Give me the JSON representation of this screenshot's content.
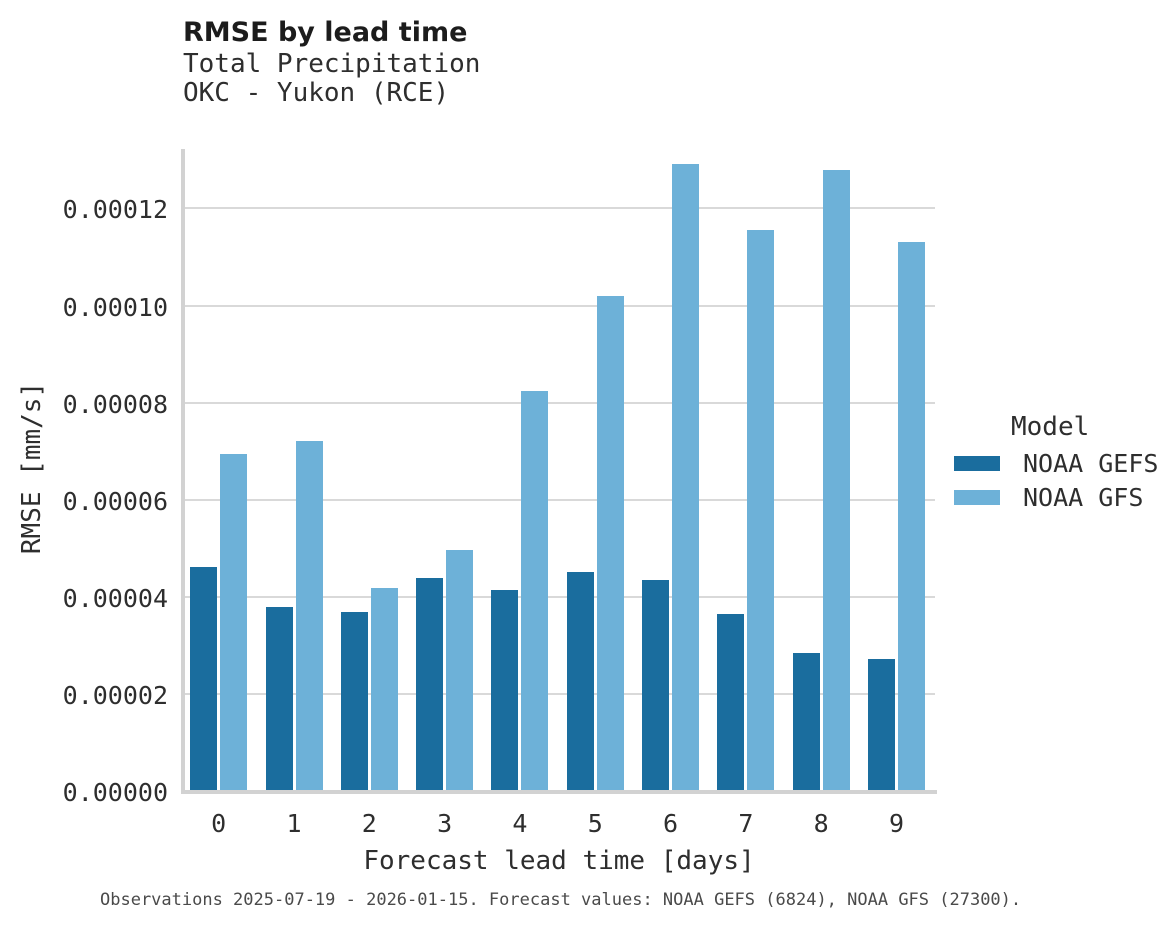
{
  "header": {
    "title": "RMSE by lead time",
    "subtitle_line1": "Total Precipitation",
    "subtitle_line2": "OKC - Yukon (RCE)"
  },
  "chart_data": {
    "type": "bar",
    "title": "RMSE by lead time",
    "subtitle": [
      "Total Precipitation",
      "OKC - Yukon (RCE)"
    ],
    "categories": [
      "0",
      "1",
      "2",
      "3",
      "4",
      "5",
      "6",
      "7",
      "8",
      "9"
    ],
    "series": [
      {
        "name": "NOAA GEFS",
        "color": "#1a6d9e",
        "values": [
          4.62e-05,
          3.79e-05,
          3.68e-05,
          4.38e-05,
          4.14e-05,
          4.52e-05,
          4.34e-05,
          3.64e-05,
          2.84e-05,
          2.72e-05
        ]
      },
      {
        "name": "NOAA GFS",
        "color": "#6db1d8",
        "values": [
          6.95e-05,
          7.21e-05,
          4.19e-05,
          4.97e-05,
          8.24e-05,
          0.0001019,
          0.0001292,
          0.0001156,
          0.0001279,
          0.000113
        ]
      }
    ],
    "xlabel": "Forecast lead time [days]",
    "ylabel": "RMSE [mm/s]",
    "ylim": [
      0,
      0.000132
    ],
    "yticks": [
      0.0,
      2e-05,
      4e-05,
      6e-05,
      8e-05,
      0.0001,
      0.00012
    ],
    "ytick_labels": [
      "0.00000",
      "0.00002",
      "0.00004",
      "0.00006",
      "0.00008",
      "0.00010",
      "0.00012"
    ],
    "grid": "horizontal-only",
    "legend_position": "right"
  },
  "legend": {
    "title": "Model",
    "entries": [
      {
        "label": "NOAA GEFS",
        "color": "#1a6d9e"
      },
      {
        "label": "NOAA GFS",
        "color": "#6db1d8"
      }
    ]
  },
  "caption": "Observations 2025-07-19 - 2026-01-15. Forecast values: NOAA GEFS (6824), NOAA GFS (27300)."
}
